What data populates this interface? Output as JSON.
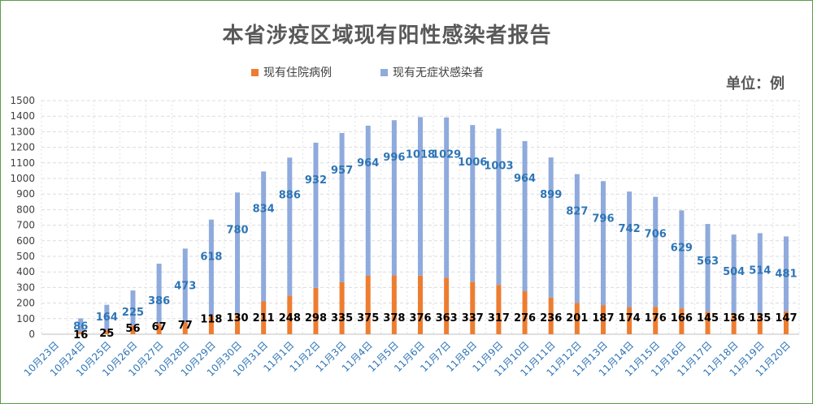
{
  "chart_data": {
    "type": "bar",
    "title": "本省涉疫区域现有阳性感染者报告",
    "unit_label": "单位：例",
    "xlabel": "",
    "ylabel": "",
    "ylim": [
      0,
      1500
    ],
    "yticks": [
      0,
      100,
      200,
      300,
      400,
      500,
      600,
      700,
      800,
      900,
      1000,
      1100,
      1200,
      1300,
      1400,
      1500
    ],
    "stacked": true,
    "grid": true,
    "legend_position": "top-center",
    "categories": [
      "10月23日",
      "10月24日",
      "10月25日",
      "10月26日",
      "10月27日",
      "10月28日",
      "10月29日",
      "10月30日",
      "10月31日",
      "11月1日",
      "11月2日",
      "11月3日",
      "11月4日",
      "11月5日",
      "11月6日",
      "11月7日",
      "11月8日",
      "11月9日",
      "11月10日",
      "11月11日",
      "11月12日",
      "11月13日",
      "11月14日",
      "11月15日",
      "11月16日",
      "11月17日",
      "11月18日",
      "11月19日",
      "11月20日"
    ],
    "series": [
      {
        "name": "现有住院病例",
        "color": "#ED7D31",
        "values": [
          null,
          16,
          25,
          56,
          67,
          77,
          118,
          130,
          211,
          248,
          298,
          335,
          375,
          378,
          376,
          363,
          337,
          317,
          276,
          236,
          201,
          187,
          174,
          176,
          166,
          145,
          136,
          135,
          147
        ]
      },
      {
        "name": "现有无症状感染者",
        "color": "#8FAADC",
        "values": [
          null,
          86,
          164,
          225,
          386,
          473,
          618,
          780,
          834,
          886,
          932,
          957,
          964,
          996,
          1018,
          1029,
          1006,
          1003,
          964,
          899,
          827,
          796,
          742,
          706,
          629,
          563,
          504,
          514,
          481
        ]
      }
    ]
  }
}
